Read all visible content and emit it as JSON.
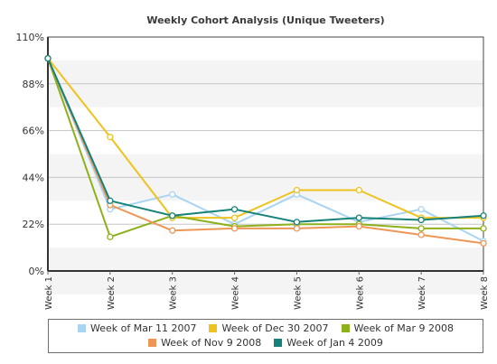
{
  "chart_data": {
    "type": "line",
    "title": "Weekly Cohort Analysis (Unique Tweeters)",
    "categories": [
      "Week 1",
      "Week 2",
      "Week 3",
      "Week 4",
      "Week 5",
      "Week 6",
      "Week 7",
      "Week 8"
    ],
    "y_ticks": [
      "110%",
      "88%",
      "66%",
      "44%",
      "22%",
      "0%"
    ],
    "ylim": [
      0,
      110
    ],
    "grid": true,
    "legend_position": "bottom",
    "series": [
      {
        "name": "Week of Mar 11 2007",
        "color": "#a9d4f2",
        "values": [
          100,
          29,
          36,
          22,
          36,
          23,
          29,
          14
        ]
      },
      {
        "name": "Week of Dec 30 2007",
        "color": "#eec21f",
        "values": [
          100,
          63,
          25,
          25,
          38,
          38,
          25,
          25
        ]
      },
      {
        "name": "Week of Mar 9 2008",
        "color": "#8db11a",
        "values": [
          100,
          16,
          26,
          21,
          22,
          22,
          20,
          20
        ]
      },
      {
        "name": "Week of Nov 9 2008",
        "color": "#ee9655",
        "values": [
          100,
          31,
          19,
          20,
          20,
          21,
          17,
          13
        ]
      },
      {
        "name": "Week of Jan 4 2009",
        "color": "#168179",
        "values": [
          100,
          33,
          26,
          29,
          23,
          25,
          24,
          26
        ]
      }
    ]
  }
}
